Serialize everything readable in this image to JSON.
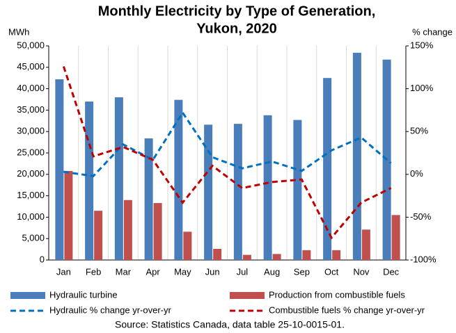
{
  "chart_data": {
    "type": "bar_line",
    "title": [
      "Monthly Electricity by Type of Generation,",
      "Yukon, 2020"
    ],
    "y_label": "MWh",
    "y2_label": "% change",
    "source": "Source: Statistics Canada, data table 25-10-0015-01.",
    "categories": [
      "Jan",
      "Feb",
      "Mar",
      "Apr",
      "May",
      "Jun",
      "Jul",
      "Aug",
      "Sep",
      "Oct",
      "Nov",
      "Dec"
    ],
    "series": [
      {
        "name": "Hydraulic turbine",
        "type": "bar",
        "color": "#4a7ebb",
        "values": [
          42200,
          37000,
          38000,
          28400,
          37400,
          31600,
          31800,
          33800,
          32700,
          42500,
          48400,
          46800
        ]
      },
      {
        "name": "Production from combustible fuels",
        "type": "bar",
        "color": "#c0504d",
        "values": [
          20800,
          11500,
          14000,
          13300,
          6600,
          2600,
          1200,
          1400,
          2300,
          2300,
          7100,
          10500
        ]
      },
      {
        "name": "Hydraulic % change yr-over-yr",
        "type": "line",
        "axis": "y2",
        "color": "#0070c0",
        "values": [
          3,
          -2,
          35,
          17,
          72,
          20,
          7,
          15,
          4,
          28,
          43,
          13
        ]
      },
      {
        "name": "Combustible fuels % change yr-over-yr",
        "type": "line",
        "axis": "y2",
        "color": "#c00000",
        "values": [
          126,
          21,
          32,
          17,
          -33,
          10,
          -16,
          -9,
          -6,
          -74,
          -33,
          -16
        ]
      }
    ],
    "ylim": [
      0,
      50000
    ],
    "yticks": [
      0,
      {
        "value": 5000,
        "label": "5,000"
      },
      {
        "value": 10000,
        "label": "10,000"
      },
      {
        "value": 15000,
        "label": "15,000"
      },
      {
        "value": 20000,
        "label": "20,000"
      },
      {
        "value": 25000,
        "label": "25,000"
      },
      {
        "value": 30000,
        "label": "30,000"
      },
      {
        "value": 35000,
        "label": "35,000"
      },
      {
        "value": 40000,
        "label": "40,000"
      },
      {
        "value": 45000,
        "label": "45,000"
      },
      {
        "value": 50000,
        "label": "50,000"
      }
    ],
    "y2lim": [
      -100,
      150
    ],
    "y2ticks": [
      {
        "value": -100,
        "label": "-100%"
      },
      {
        "value": -50,
        "label": "-50%"
      },
      {
        "value": 0,
        "label": "0%"
      },
      {
        "value": 50,
        "label": "50%"
      },
      {
        "value": 100,
        "label": "100%"
      },
      {
        "value": 150,
        "label": "150%"
      }
    ]
  }
}
